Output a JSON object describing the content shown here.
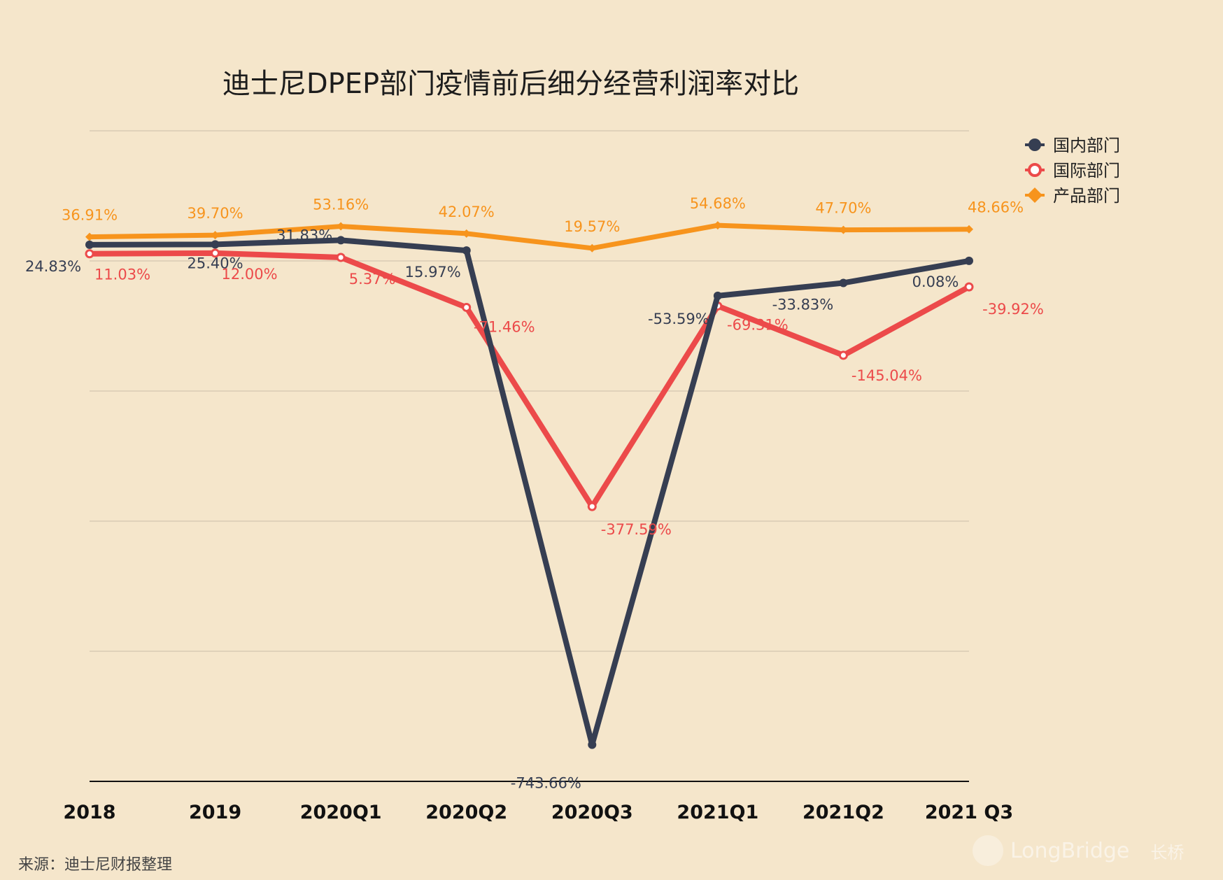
{
  "chart_data": {
    "type": "line",
    "title": "迪士尼DPEP部门疫情前后细分经营利润率对比",
    "categories": [
      "2018",
      "2019",
      "2020Q1",
      "2020Q2",
      "2020Q3",
      "2021Q1",
      "2021Q2",
      "2021 Q3"
    ],
    "series": [
      {
        "name": "国内部门",
        "color": "#363e52",
        "marker": "circle",
        "values": [
          24.83,
          25.4,
          31.83,
          15.97,
          -743.66,
          -53.59,
          -33.83,
          0.08
        ],
        "labels": [
          "24.83%",
          "25.40%",
          "31.83%",
          "15.97%",
          "-743.66%",
          "-53.59%",
          "-33.83%",
          "0.08%"
        ]
      },
      {
        "name": "国际部门",
        "color": "#ec4a4a",
        "marker": "hollow-circle",
        "values": [
          11.03,
          12.0,
          5.37,
          -71.46,
          -377.59,
          -69.31,
          -145.04,
          -39.92
        ],
        "labels": [
          "11.03%",
          "12.00%",
          "5.37%",
          "-71.46%",
          "-377.59%",
          "-69.31%",
          "-145.04%",
          "-39.92%"
        ]
      },
      {
        "name": "产品部门",
        "color": "#f7941d",
        "marker": "diamond",
        "values": [
          36.91,
          39.7,
          53.16,
          42.07,
          19.57,
          54.68,
          47.7,
          48.66
        ],
        "labels": [
          "36.91%",
          "39.70%",
          "53.16%",
          "42.07%",
          "19.57%",
          "54.68%",
          "47.70%",
          "48.66%"
        ]
      }
    ],
    "xlabel": "",
    "ylabel": "",
    "ylim": [
      -800,
      200
    ],
    "grid": true,
    "legend": "top-right"
  },
  "source": "来源：迪士尼财报整理",
  "watermark": {
    "brand": "LongBridge",
    "sub": "长桥"
  }
}
